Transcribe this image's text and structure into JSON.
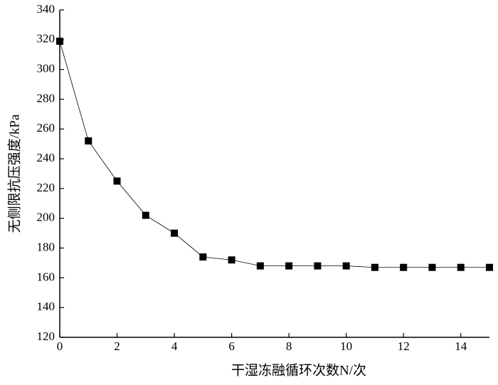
{
  "chart_data": {
    "type": "line",
    "x_label": "干湿冻融循环次数N/次",
    "y_label": "无侧限抗压强度/kPa",
    "x": [
      0,
      1,
      2,
      3,
      4,
      5,
      6,
      7,
      8,
      9,
      10,
      11,
      12,
      13,
      14,
      15
    ],
    "series": [
      {
        "color": "#000000",
        "values": [
          319,
          252,
          225,
          202,
          190,
          174,
          172,
          168,
          168,
          168,
          168,
          167,
          167,
          167,
          167,
          167
        ]
      }
    ],
    "xlim": [
      0,
      15
    ],
    "xticks": [
      0,
      2,
      4,
      6,
      8,
      10,
      12,
      14
    ],
    "ylim": [
      120,
      340
    ],
    "yticks": [
      120,
      140,
      160,
      180,
      200,
      220,
      240,
      260,
      280,
      300,
      320,
      340
    ],
    "marker": "square"
  }
}
